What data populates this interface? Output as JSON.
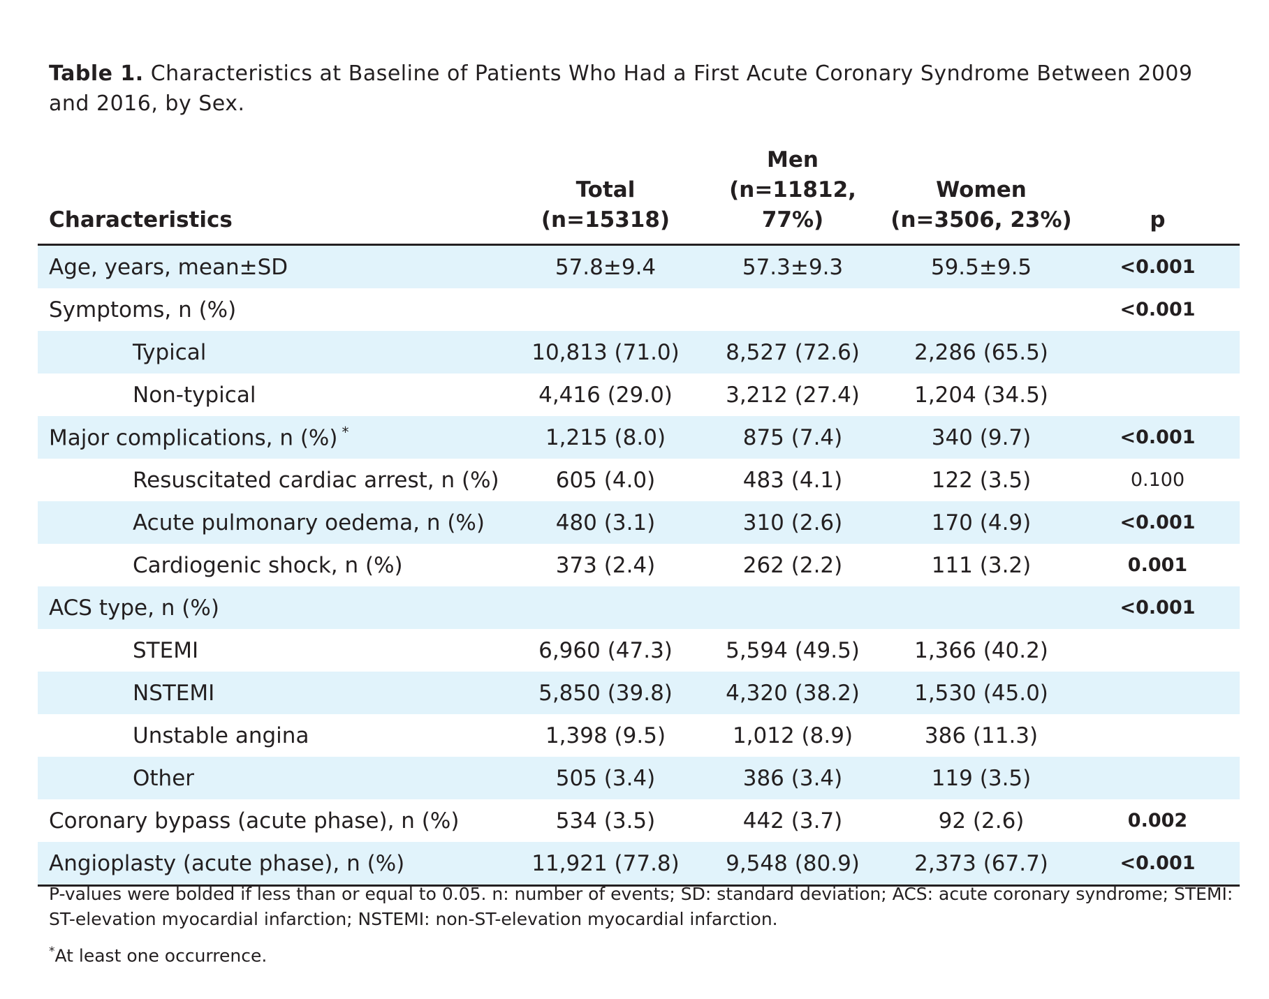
{
  "caption": {
    "label": "Table 1.",
    "text": "Characteristics at Baseline of Patients Who Had a First Acute Coronary Syndrome Between 2009 and 2016, by Sex."
  },
  "headers": {
    "characteristics": "Characteristics",
    "total_line1": "Total",
    "total_line2": "(n=15318)",
    "men_line1": "Men",
    "men_line2": "(n=11812, 77%)",
    "women_line1": "Women",
    "women_line2": "(n=3506, 23%)",
    "p": "p"
  },
  "rows": [
    {
      "label": "Age, years, mean±SD",
      "total": "57.8±9.4",
      "men": "57.3±9.3",
      "women": "59.5±9.5",
      "p": "<0.001"
    },
    {
      "label": "Symptoms, n (%)",
      "total": "",
      "men": "",
      "women": "",
      "p": "<0.001"
    },
    {
      "label": "Typical",
      "total": "10,813 (71.0)",
      "men": "8,527 (72.6)",
      "women": "2,286 (65.5)",
      "p": ""
    },
    {
      "label": "Non-typical",
      "total": "4,416 (29.0)",
      "men": "3,212 (27.4)",
      "women": "1,204 (34.5)",
      "p": ""
    },
    {
      "label": "Major complications, n (%)",
      "marker": "*",
      "total": "1,215 (8.0)",
      "men": "875 (7.4)",
      "women": "340 (9.7)",
      "p": "<0.001"
    },
    {
      "label": "Resuscitated cardiac arrest, n (%)",
      "total": "605 (4.0)",
      "men": "483 (4.1)",
      "women": "122 (3.5)",
      "p": "0.100"
    },
    {
      "label": "Acute pulmonary oedema, n (%)",
      "total": "480 (3.1)",
      "men": "310 (2.6)",
      "women": "170 (4.9)",
      "p": "<0.001"
    },
    {
      "label": "Cardiogenic shock, n (%)",
      "total": "373 (2.4)",
      "men": "262 (2.2)",
      "women": "111 (3.2)",
      "p": "0.001"
    },
    {
      "label": "ACS type, n (%)",
      "total": "",
      "men": "",
      "women": "",
      "p": "<0.001"
    },
    {
      "label": "STEMI",
      "total": "6,960 (47.3)",
      "men": "5,594 (49.5)",
      "women": "1,366 (40.2)",
      "p": ""
    },
    {
      "label": "NSTEMI",
      "total": "5,850 (39.8)",
      "men": "4,320 (38.2)",
      "women": "1,530 (45.0)",
      "p": ""
    },
    {
      "label": "Unstable angina",
      "total": "1,398 (9.5)",
      "men": "1,012 (8.9)",
      "women": "386 (11.3)",
      "p": ""
    },
    {
      "label": "Other",
      "total": "505 (3.4)",
      "men": "386 (3.4)",
      "women": "119 (3.5)",
      "p": ""
    },
    {
      "label": "Coronary bypass (acute phase), n (%)",
      "total": "534 (3.5)",
      "men": "442 (3.7)",
      "women": "92 (2.6)",
      "p": "0.002"
    },
    {
      "label": "Angioplasty (acute phase), n (%)",
      "total": "11,921 (77.8)",
      "men": "9,548 (80.9)",
      "women": "2,373 (67.7)",
      "p": "<0.001"
    }
  ],
  "footnotes": {
    "abbreviations": "P-values were bolded if less than or equal to 0.05. n: number of events; SD: standard deviation; ACS: acute coronary syndrome; STEMI: ST-elevation myocardial infarction; NSTEMI: non-ST-elevation myocardial infarction.",
    "marker": "*",
    "marker_text": "At least one occurrence."
  }
}
